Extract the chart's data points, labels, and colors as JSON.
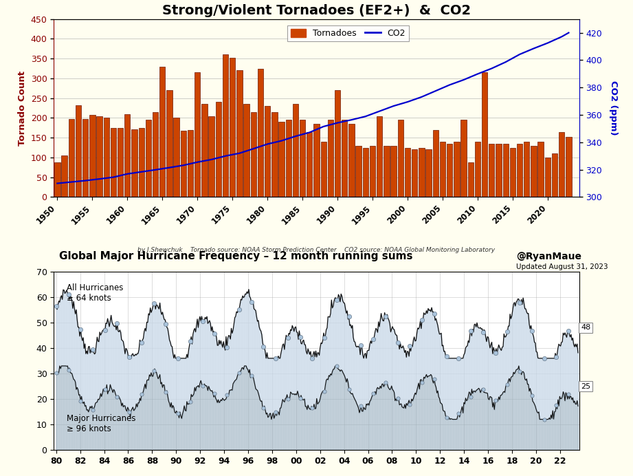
{
  "top_chart": {
    "title": "Strong/Violent Tornadoes (EF2+)  &  CO2",
    "title_fontsize": 15,
    "ylabel_left": "Tornado Count",
    "ylabel_right": "CO2 (ppm)",
    "ylabel_left_color": "#8B0000",
    "ylabel_right_color": "#0000CD",
    "source_text": "by J.Shewchuk    Tornado source: NOAA Storm Prediction Center    CO2 source: NOAA Global Monitoring Laboratory",
    "ylim_left": [
      0,
      450
    ],
    "ylim_right": [
      300,
      430
    ],
    "yticks_left": [
      0,
      50,
      100,
      150,
      200,
      250,
      300,
      350,
      400,
      450
    ],
    "yticks_right": [
      300,
      320,
      340,
      360,
      380,
      400,
      420
    ],
    "bar_color_bottom": "#CC4400",
    "bar_color_top": "#8B2000",
    "bar_edge_color": "#6B1500",
    "co2_line_color": "#0000CD",
    "legend_tornado_color": "#CC4400",
    "legend_co2_color": "#0000CD",
    "tornado_years": [
      1950,
      1951,
      1952,
      1953,
      1954,
      1955,
      1956,
      1957,
      1958,
      1959,
      1960,
      1961,
      1962,
      1963,
      1964,
      1965,
      1966,
      1967,
      1968,
      1969,
      1970,
      1971,
      1972,
      1973,
      1974,
      1975,
      1976,
      1977,
      1978,
      1979,
      1980,
      1981,
      1982,
      1983,
      1984,
      1985,
      1986,
      1987,
      1988,
      1989,
      1990,
      1991,
      1992,
      1993,
      1994,
      1995,
      1996,
      1997,
      1998,
      1999,
      2000,
      2001,
      2002,
      2003,
      2004,
      2005,
      2006,
      2007,
      2008,
      2009,
      2010,
      2011,
      2012,
      2013,
      2014,
      2015,
      2016,
      2017,
      2018,
      2019,
      2020,
      2021,
      2022,
      2023
    ],
    "tornado_counts": [
      88,
      105,
      198,
      232,
      198,
      207,
      205,
      200,
      175,
      175,
      210,
      172,
      175,
      195,
      215,
      330,
      270,
      200,
      167,
      170,
      315,
      235,
      205,
      240,
      360,
      352,
      320,
      235,
      215,
      325,
      230,
      215,
      190,
      195,
      235,
      195,
      165,
      185,
      140,
      196,
      270,
      195,
      185,
      130,
      125,
      130,
      205,
      130,
      130,
      195,
      125,
      120,
      125,
      120,
      170,
      140,
      135,
      140,
      195,
      88,
      140,
      315,
      135,
      135,
      135,
      125,
      135,
      140,
      130,
      140,
      100,
      110,
      165,
      152
    ],
    "co2_years": [
      1950,
      1952,
      1954,
      1956,
      1958,
      1960,
      1962,
      1964,
      1966,
      1968,
      1970,
      1972,
      1974,
      1976,
      1978,
      1980,
      1982,
      1984,
      1986,
      1988,
      1990,
      1992,
      1994,
      1996,
      1998,
      2000,
      2002,
      2004,
      2006,
      2008,
      2010,
      2012,
      2014,
      2016,
      2018,
      2020,
      2022,
      2023
    ],
    "co2_values": [
      310.0,
      311.0,
      312.0,
      313.2,
      314.5,
      316.9,
      318.4,
      319.9,
      321.5,
      323.2,
      325.5,
      327.4,
      330.0,
      332.0,
      335.3,
      338.7,
      341.1,
      344.4,
      347.2,
      351.5,
      354.2,
      356.4,
      358.9,
      362.7,
      366.5,
      369.5,
      373.1,
      377.5,
      381.9,
      385.6,
      389.9,
      393.9,
      398.6,
      404.2,
      408.5,
      412.5,
      417.1,
      420.0
    ],
    "xticklabels": [
      "1950",
      "1955",
      "1960",
      "1965",
      "1970",
      "1975",
      "1980",
      "1985",
      "1990",
      "1995",
      "2000",
      "2005",
      "2010",
      "2015",
      "2020"
    ],
    "xticks": [
      1950,
      1955,
      1960,
      1965,
      1970,
      1975,
      1980,
      1985,
      1990,
      1995,
      2000,
      2005,
      2010,
      2015,
      2020
    ],
    "bg_color": "#FFFEF0",
    "plot_bg": "#FFFEF0"
  },
  "bottom_chart": {
    "title": "Global Major Hurricane Frequency",
    "title_suffix": " – 12 month running sums",
    "attribution": "@RyanMaue",
    "updated_text": "Updated August 31, 2023",
    "ylim": [
      0,
      70
    ],
    "yticks": [
      0,
      10,
      20,
      30,
      40,
      50,
      60,
      70
    ],
    "xtick_labels": [
      "80",
      "82",
      "84",
      "86",
      "88",
      "90",
      "92",
      "94",
      "96",
      "98",
      "00",
      "02",
      "04",
      "06",
      "08",
      "10",
      "12",
      "14",
      "16",
      "18",
      "20",
      "22"
    ],
    "xticks": [
      1980,
      1982,
      1984,
      1986,
      1988,
      1990,
      1992,
      1994,
      1996,
      1998,
      2000,
      2002,
      2004,
      2006,
      2008,
      2010,
      2012,
      2014,
      2016,
      2018,
      2020,
      2022
    ],
    "label_all": "All Hurricanes\n≥ 64 knots",
    "label_major": "Major Hurricanes\n≥ 96 knots",
    "end_label_all": "48",
    "end_label_major": "25",
    "fill_upper_color": "#c8d8e8",
    "fill_lower_color": "#9ab0c0",
    "line_color": "#111111",
    "marker_color": "#aac4dc",
    "bg_color": "#ffffff"
  }
}
